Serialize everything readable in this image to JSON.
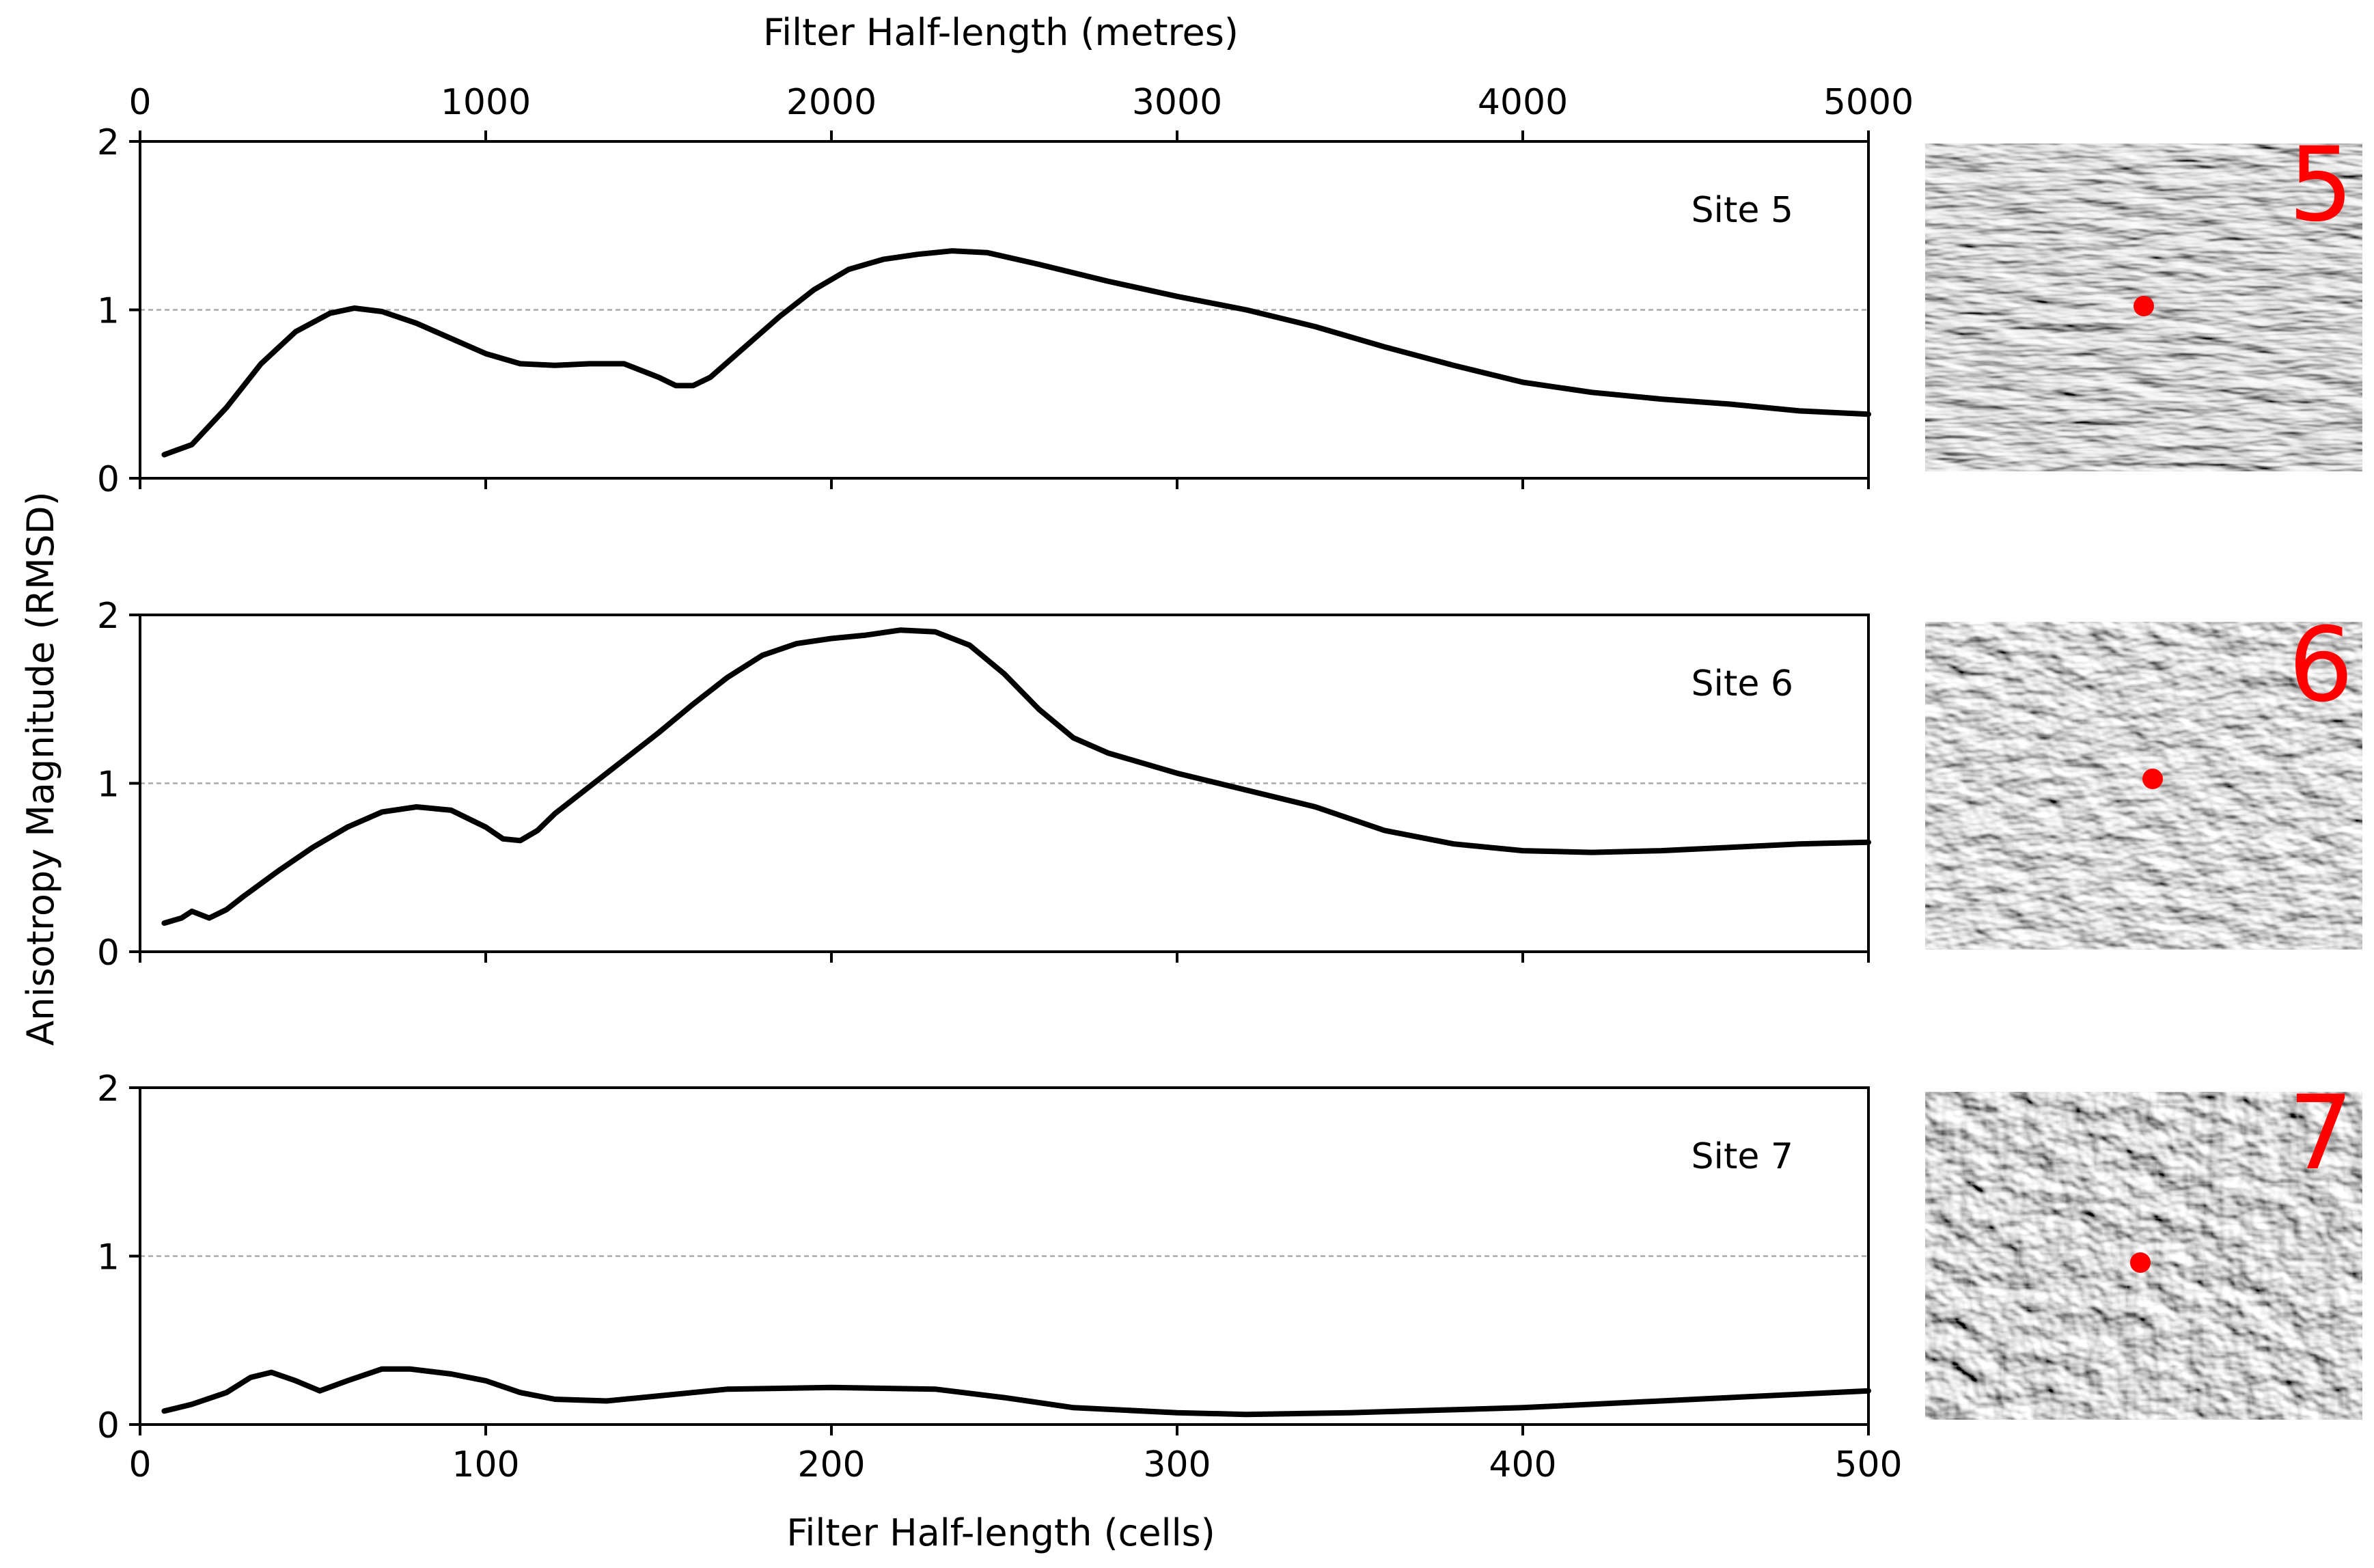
{
  "chart_data": {
    "type": "line",
    "ylabel": "Anisotropy Magnitude (RMSD)",
    "xlabel_bottom": "Filter Half-length (cells)",
    "xlabel_top": "Filter Half-length (metres)",
    "xlim_cells": [
      0,
      500
    ],
    "xlim_metres": [
      0,
      5000
    ],
    "xticks_bottom": [
      "0",
      "100",
      "200",
      "300",
      "400",
      "500"
    ],
    "xticks_top": [
      "0",
      "1000",
      "2000",
      "3000",
      "4000",
      "5000"
    ],
    "ylim": [
      0,
      2
    ],
    "yticks": [
      "0",
      "1",
      "2"
    ],
    "reference_line_y": 1,
    "line_color": "#000000",
    "reference_line_color": "#aaaaaa",
    "marker_color": "#ff0000",
    "panels": [
      {
        "site": "Site 5",
        "thumbnail_number": "5",
        "x": [
          7,
          15,
          25,
          35,
          45,
          55,
          62,
          70,
          80,
          90,
          100,
          110,
          120,
          130,
          140,
          150,
          155,
          160,
          165,
          175,
          185,
          195,
          205,
          215,
          225,
          235,
          245,
          260,
          280,
          300,
          320,
          340,
          360,
          380,
          400,
          420,
          440,
          460,
          480,
          500
        ],
        "y": [
          0.14,
          0.2,
          0.42,
          0.68,
          0.87,
          0.98,
          1.01,
          0.99,
          0.92,
          0.83,
          0.74,
          0.68,
          0.67,
          0.68,
          0.68,
          0.6,
          0.55,
          0.55,
          0.6,
          0.78,
          0.96,
          1.12,
          1.24,
          1.3,
          1.33,
          1.35,
          1.34,
          1.27,
          1.17,
          1.08,
          1.0,
          0.9,
          0.78,
          0.67,
          0.57,
          0.51,
          0.47,
          0.44,
          0.4,
          0.38
        ]
      },
      {
        "site": "Site 6",
        "thumbnail_number": "6",
        "x": [
          7,
          12,
          15,
          20,
          25,
          30,
          40,
          50,
          60,
          70,
          80,
          90,
          100,
          105,
          110,
          115,
          120,
          130,
          140,
          150,
          160,
          170,
          180,
          190,
          200,
          210,
          220,
          230,
          240,
          250,
          260,
          270,
          280,
          300,
          320,
          340,
          360,
          380,
          400,
          420,
          440,
          460,
          480,
          500
        ],
        "y": [
          0.17,
          0.2,
          0.24,
          0.2,
          0.25,
          0.33,
          0.48,
          0.62,
          0.74,
          0.83,
          0.86,
          0.84,
          0.74,
          0.67,
          0.66,
          0.72,
          0.82,
          0.98,
          1.14,
          1.3,
          1.47,
          1.63,
          1.76,
          1.83,
          1.86,
          1.88,
          1.91,
          1.9,
          1.82,
          1.65,
          1.44,
          1.27,
          1.18,
          1.06,
          0.96,
          0.86,
          0.72,
          0.64,
          0.6,
          0.59,
          0.6,
          0.62,
          0.64,
          0.65
        ]
      },
      {
        "site": "Site 7",
        "thumbnail_number": "7",
        "x": [
          7,
          15,
          25,
          32,
          38,
          45,
          52,
          60,
          70,
          78,
          90,
          100,
          110,
          120,
          135,
          150,
          170,
          200,
          230,
          250,
          270,
          300,
          320,
          350,
          400,
          450,
          500
        ],
        "y": [
          0.08,
          0.12,
          0.19,
          0.28,
          0.31,
          0.26,
          0.2,
          0.26,
          0.33,
          0.33,
          0.3,
          0.26,
          0.19,
          0.15,
          0.14,
          0.17,
          0.21,
          0.22,
          0.21,
          0.16,
          0.1,
          0.07,
          0.06,
          0.07,
          0.1,
          0.15,
          0.2
        ]
      }
    ]
  }
}
